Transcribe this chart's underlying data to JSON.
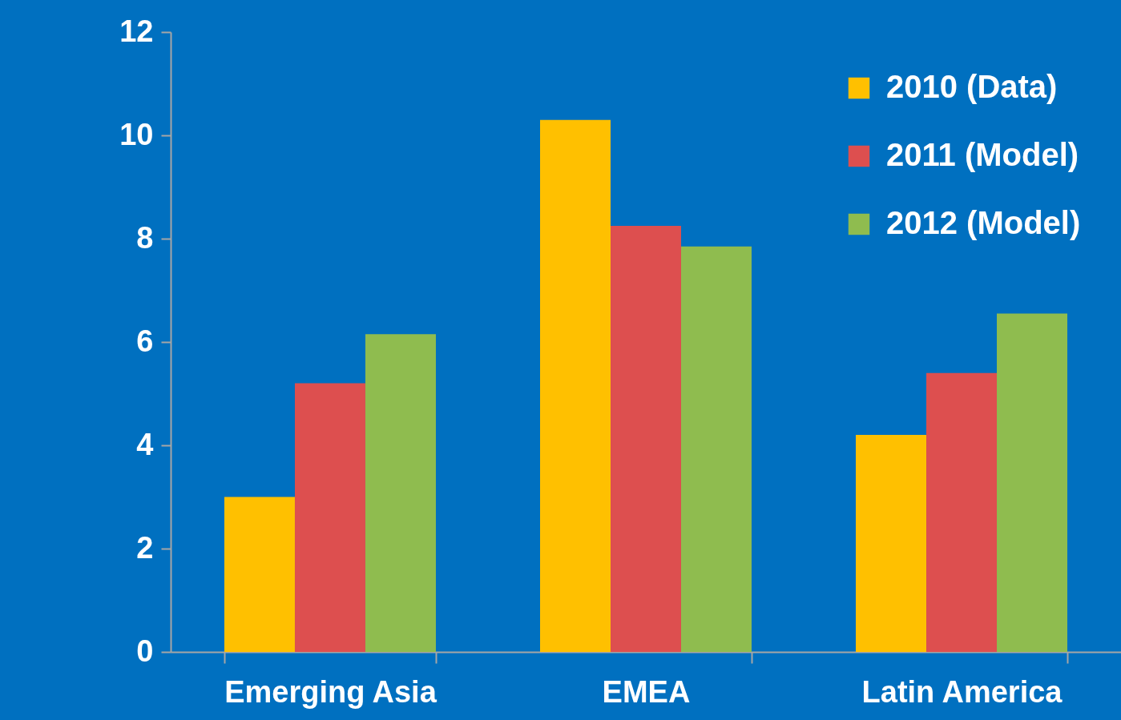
{
  "chart_data": {
    "type": "bar",
    "categories": [
      "Emerging Asia",
      "EMEA",
      "Latin America"
    ],
    "series": [
      {
        "name": "2010 (Data)",
        "color": "#ffc000",
        "values": [
          3.0,
          10.3,
          4.2
        ]
      },
      {
        "name": "2011 (Model)",
        "color": "#dd4f4f",
        "values": [
          5.2,
          8.25,
          5.4
        ]
      },
      {
        "name": "2012 (Model)",
        "color": "#8fbc4f",
        "values": [
          6.15,
          7.85,
          6.55
        ]
      }
    ],
    "ylim": [
      0,
      12
    ],
    "yticks": [
      0,
      2,
      4,
      6,
      8,
      10,
      12
    ],
    "grid": false,
    "legend": "top right"
  }
}
